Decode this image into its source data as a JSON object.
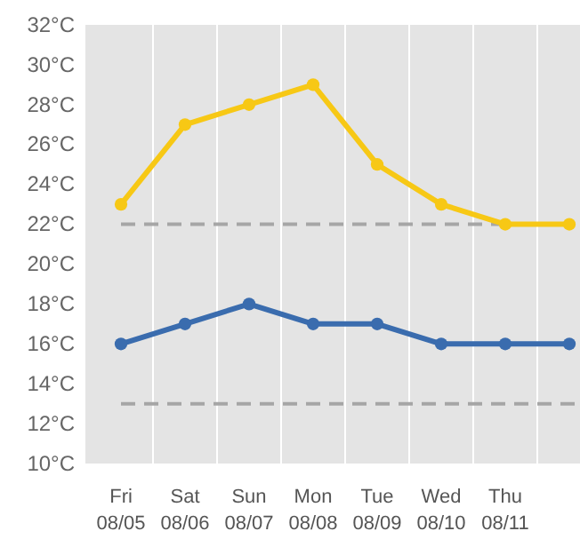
{
  "chart_data": {
    "type": "line",
    "categories": [
      "Fri\n08/05",
      "Sat\n08/06",
      "Sun\n08/07",
      "Mon\n08/08",
      "Tue\n08/09",
      "Wed\n08/10",
      "Thu\n08/11",
      null
    ],
    "series": [
      {
        "color": "#f7c815",
        "values": [
          23,
          27,
          28,
          29,
          25,
          23,
          22,
          22
        ]
      },
      {
        "color": "#3a6cae",
        "values": [
          16,
          17,
          18,
          17,
          17,
          16,
          16,
          16
        ]
      }
    ],
    "ylim": [
      10,
      32
    ],
    "yticks": [
      {
        "value": 10,
        "label": "10°C"
      },
      {
        "value": 12,
        "label": "12°C"
      },
      {
        "value": 14,
        "label": "14°C"
      },
      {
        "value": 16,
        "label": "16°C"
      },
      {
        "value": 18,
        "label": "18°C"
      },
      {
        "value": 20,
        "label": "20°C"
      },
      {
        "value": 22,
        "label": "22°C"
      },
      {
        "value": 24,
        "label": "24°C"
      },
      {
        "value": 26,
        "label": "26°C"
      },
      {
        "value": 28,
        "label": "28°C"
      },
      {
        "value": 30,
        "label": "30°C"
      },
      {
        "value": 32,
        "label": "32°C"
      }
    ],
    "ref_lines": [
      {
        "axis": "y",
        "value": 22,
        "color": "#a6a6a6",
        "line_style": "dashed"
      },
      {
        "axis": "y",
        "value": 13,
        "color": "#a6a6a6",
        "line_style": "dashed"
      }
    ],
    "grid": "x",
    "marker": "circle",
    "line_style": "solid"
  }
}
